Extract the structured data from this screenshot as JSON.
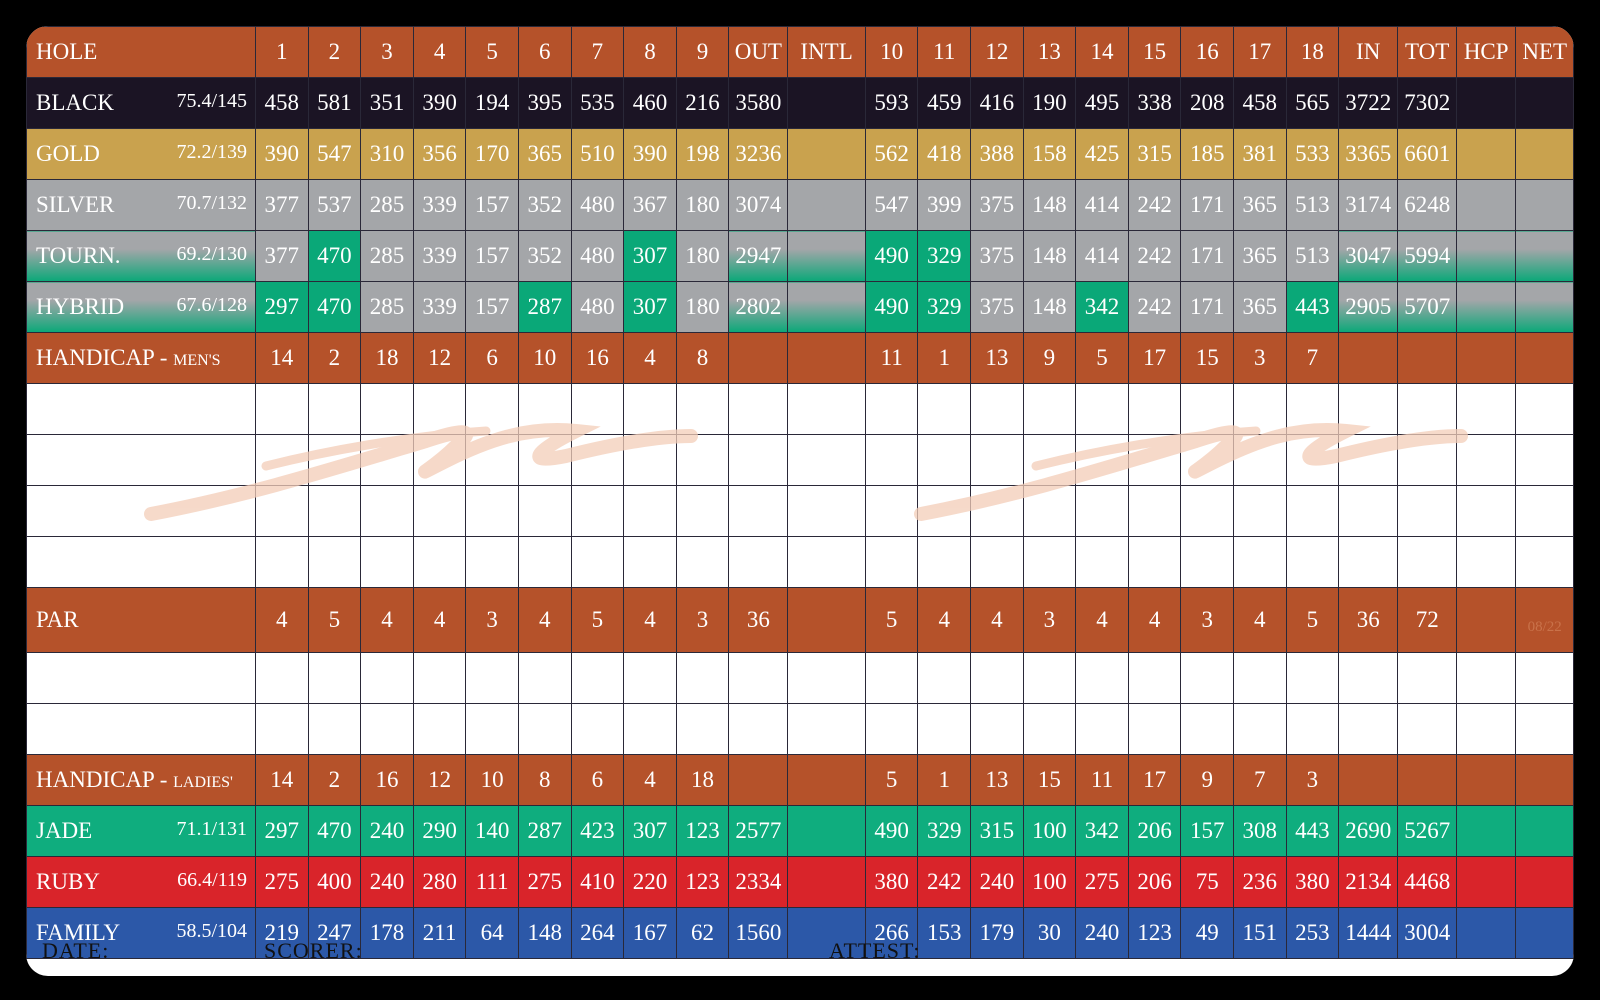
{
  "header": {
    "label": "HOLE",
    "columns": [
      1,
      2,
      3,
      4,
      5,
      6,
      7,
      8,
      9,
      "OUT",
      "INTL",
      10,
      11,
      12,
      13,
      14,
      15,
      16,
      17,
      18,
      "IN",
      "TOT",
      "HCP",
      "NET"
    ],
    "color": "#b5522a"
  },
  "tees": [
    {
      "name": "BLACK",
      "rating": "75.4/145",
      "color": "#1b1424",
      "values": [
        458,
        581,
        351,
        390,
        194,
        395,
        535,
        460,
        216,
        3580,
        null,
        593,
        459,
        416,
        190,
        495,
        338,
        208,
        458,
        565,
        3722,
        7302
      ]
    },
    {
      "name": "GOLD",
      "rating": "72.2/139",
      "color": "#c9a24e",
      "values": [
        390,
        547,
        310,
        356,
        170,
        365,
        510,
        390,
        198,
        3236,
        null,
        562,
        418,
        388,
        158,
        425,
        315,
        185,
        381,
        533,
        3365,
        6601
      ]
    },
    {
      "name": "SILVER",
      "rating": "70.7/132",
      "color": "#a4a6a9",
      "values": [
        377,
        537,
        285,
        339,
        157,
        352,
        480,
        367,
        180,
        3074,
        null,
        547,
        399,
        375,
        148,
        414,
        242,
        171,
        365,
        513,
        3174,
        6248
      ]
    },
    {
      "name": "TOURN.",
      "rating": "69.2/130",
      "color": [
        "#a4a6a9",
        "#0aa878"
      ],
      "green_holes": [
        2,
        8,
        10,
        11
      ],
      "values": [
        377,
        470,
        285,
        339,
        157,
        352,
        480,
        307,
        180,
        2947,
        null,
        490,
        329,
        375,
        148,
        414,
        242,
        171,
        365,
        513,
        3047,
        5994
      ]
    },
    {
      "name": "HYBRID",
      "rating": "67.6/128",
      "color": [
        "#a4a6a9",
        "#0aa878"
      ],
      "green_holes": [
        1,
        2,
        6,
        8,
        10,
        11,
        14,
        18
      ],
      "values": [
        297,
        470,
        285,
        339,
        157,
        287,
        480,
        307,
        180,
        2802,
        null,
        490,
        329,
        375,
        148,
        342,
        242,
        171,
        365,
        443,
        2905,
        5707
      ]
    }
  ],
  "handicap_mens": {
    "name": "HANDICAP -",
    "sub": "MEN'S",
    "values": [
      14,
      2,
      18,
      12,
      6,
      10,
      16,
      4,
      8,
      null,
      null,
      11,
      1,
      13,
      9,
      5,
      17,
      15,
      3,
      7
    ]
  },
  "par": {
    "name": "PAR",
    "values": [
      4,
      5,
      4,
      4,
      3,
      4,
      5,
      4,
      3,
      36,
      null,
      5,
      4,
      4,
      3,
      4,
      4,
      3,
      4,
      5,
      36,
      72
    ],
    "note": "08/22"
  },
  "handicap_ladies": {
    "name": "HANDICAP -",
    "sub": "LADIES'",
    "values": [
      14,
      2,
      16,
      12,
      10,
      8,
      6,
      4,
      18,
      null,
      null,
      5,
      1,
      13,
      15,
      11,
      17,
      9,
      7,
      3
    ]
  },
  "ladies_tees": [
    {
      "name": "JADE",
      "rating": "71.1/131",
      "color": "#0fad7e",
      "values": [
        297,
        470,
        240,
        290,
        140,
        287,
        423,
        307,
        123,
        2577,
        null,
        490,
        329,
        315,
        100,
        342,
        206,
        157,
        308,
        443,
        2690,
        5267
      ]
    },
    {
      "name": "RUBY",
      "rating": "66.4/119",
      "color": "#d9242a",
      "values": [
        275,
        400,
        240,
        280,
        111,
        275,
        410,
        220,
        123,
        2334,
        null,
        380,
        242,
        240,
        100,
        275,
        206,
        75,
        236,
        380,
        2134,
        4468
      ]
    },
    {
      "name": "FAMILY",
      "rating": "58.5/104",
      "color": "#2c58a8",
      "values": [
        219,
        247,
        178,
        211,
        64,
        148,
        264,
        167,
        62,
        1560,
        null,
        266,
        153,
        179,
        30,
        240,
        123,
        49,
        151,
        253,
        1444,
        3004
      ]
    }
  ],
  "footer": {
    "date": "DATE:",
    "scorer": "SCORER:",
    "attest": "ATTEST:"
  }
}
